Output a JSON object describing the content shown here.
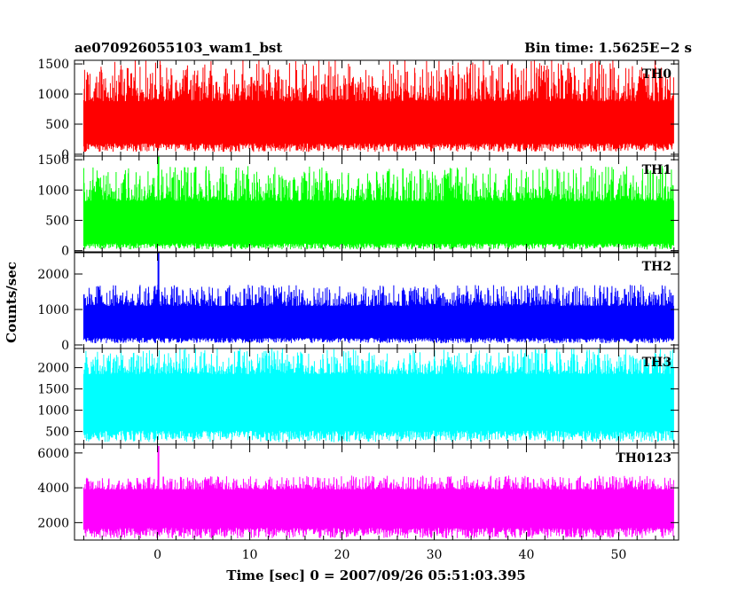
{
  "header": {
    "title_left": "ae070926055103_wam1_bst",
    "title_right": "Bin time: 1.5625E−2 s"
  },
  "axes": {
    "xlabel": "Time [sec] 0 = 2007/09/26 05:51:03.395",
    "ylabel": "Counts/sec"
  },
  "chart_data": {
    "type": "line",
    "title": "ae070926055103_wam1_bst",
    "subtitle": "Bin time: 1.5625E−2 s",
    "xlabel": "Time [sec] 0 = 2007/09/26 05:51:03.395",
    "ylabel": "Counts/sec",
    "xlim": [
      -9,
      56.5
    ],
    "x_ticks": [
      0,
      10,
      20,
      30,
      40,
      50
    ],
    "data_x_range": [
      -8,
      56
    ],
    "bin_time_s": 0.015625,
    "grid": false,
    "series": [
      {
        "name": "TH0",
        "color": "#ff0000",
        "ylim": [
          -30,
          1560
        ],
        "y_ticks": [
          0,
          500,
          1000,
          1500
        ],
        "typical_low": 180,
        "typical_high": 880,
        "min": 40,
        "max": 1560,
        "spikes": []
      },
      {
        "name": "TH1",
        "color": "#00ff00",
        "ylim": [
          -20,
          1560
        ],
        "y_ticks": [
          0,
          500,
          1000,
          1500
        ],
        "typical_low": 120,
        "typical_high": 820,
        "min": 20,
        "max": 1400,
        "spikes": [
          {
            "x": 0.1,
            "y": 1550
          }
        ]
      },
      {
        "name": "TH2",
        "color": "#0000ff",
        "ylim": [
          -100,
          2600
        ],
        "y_ticks": [
          0,
          1000,
          2000
        ],
        "typical_low": 200,
        "typical_high": 1100,
        "min": 50,
        "max": 1700,
        "spikes": [
          {
            "x": 0.1,
            "y": 2600
          }
        ]
      },
      {
        "name": "TH3",
        "color": "#00ffff",
        "ylim": [
          200,
          2450
        ],
        "y_ticks": [
          500,
          1000,
          1500,
          2000
        ],
        "typical_low": 520,
        "typical_high": 1850,
        "min": 250,
        "max": 2450,
        "spikes": []
      },
      {
        "name": "TH0123",
        "color": "#ff00ff",
        "ylim": [
          1000,
          6500
        ],
        "y_ticks": [
          2000,
          4000,
          6000
        ],
        "typical_low": 1700,
        "typical_high": 3900,
        "min": 1100,
        "max": 4700,
        "spikes": [
          {
            "x": 0.1,
            "y": 6400
          }
        ]
      }
    ]
  }
}
